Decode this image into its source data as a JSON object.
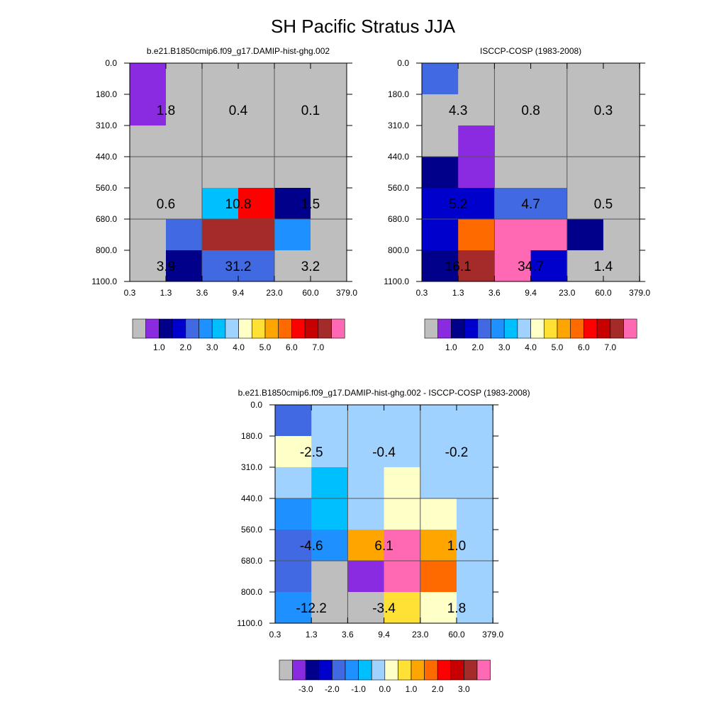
{
  "title": "SH Pacific Stratus JJA",
  "chart_data": [
    {
      "type": "heatmap",
      "title": "b.e21.B1850cmip6.f09_g17.DAMIP-hist-ghg.002",
      "x_ticks": [
        "0.3",
        "1.3",
        "3.6",
        "9.4",
        "23.0",
        "60.0",
        "379.0"
      ],
      "y_ticks": [
        "0.0",
        "180.0",
        "310.0",
        "440.0",
        "560.0",
        "680.0",
        "800.0",
        "1100.0"
      ],
      "x_bin_edges": [
        0.3,
        1.3,
        3.6,
        9.4,
        23.0,
        60.0,
        379.0
      ],
      "y_bin_edges": [
        0,
        180,
        310,
        440,
        560,
        680,
        800,
        1100
      ],
      "y_axis": "pressure (top = 0)",
      "cells_color_index": [
        [
          1,
          0,
          0,
          0,
          0,
          0
        ],
        [
          1,
          0,
          0,
          0,
          0,
          0
        ],
        [
          0,
          0,
          0,
          0,
          0,
          0
        ],
        [
          0,
          0,
          0,
          0,
          0,
          0
        ],
        [
          0,
          0,
          6,
          12,
          2,
          0
        ],
        [
          0,
          4,
          14,
          14,
          5,
          0
        ],
        [
          0,
          2,
          4,
          4,
          0,
          0
        ]
      ],
      "labels": [
        {
          "text": "1.8",
          "col": 0.5,
          "row": 1
        },
        {
          "text": "0.4",
          "col": 2.5,
          "row": 1
        },
        {
          "text": "0.1",
          "col": 4.5,
          "row": 1
        },
        {
          "text": "0.6",
          "col": 0.5,
          "row": 4
        },
        {
          "text": "10.8",
          "col": 2.5,
          "row": 4
        },
        {
          "text": "1.5",
          "col": 4.5,
          "row": 4
        },
        {
          "text": "3.9",
          "col": 0.5,
          "row": 6
        },
        {
          "text": "31.2",
          "col": 2.5,
          "row": 6
        },
        {
          "text": "3.2",
          "col": 4.5,
          "row": 6
        }
      ],
      "colorbar": {
        "colors": [
          "#bebebe",
          "#8a2be2",
          "#00008b",
          "#0000cd",
          "#4169e1",
          "#1e90ff",
          "#00bfff",
          "#a0d2ff",
          "#ffffc8",
          "#ffe135",
          "#ffa500",
          "#ff6a00",
          "#ff0000",
          "#c80000",
          "#a52a2a",
          "#ff69b4"
        ],
        "labels": [
          "1.0",
          "2.0",
          "3.0",
          "4.0",
          "5.0",
          "6.0",
          "7.0"
        ],
        "label_start_boundary": 2,
        "label_step": 2
      }
    },
    {
      "type": "heatmap",
      "title": "ISCCP-COSP (1983-2008)",
      "x_ticks": [
        "0.3",
        "1.3",
        "3.6",
        "9.4",
        "23.0",
        "60.0",
        "379.0"
      ],
      "y_ticks": [
        "0.0",
        "180.0",
        "310.0",
        "440.0",
        "560.0",
        "680.0",
        "800.0",
        "1100.0"
      ],
      "x_bin_edges": [
        0.3,
        1.3,
        3.6,
        9.4,
        23.0,
        60.0,
        379.0
      ],
      "y_bin_edges": [
        0,
        180,
        310,
        440,
        560,
        680,
        800,
        1100
      ],
      "y_axis": "pressure (top = 0)",
      "cells_color_index": [
        [
          4,
          0,
          0,
          0,
          0,
          0
        ],
        [
          0,
          0,
          0,
          0,
          0,
          0
        ],
        [
          0,
          1,
          0,
          0,
          0,
          0
        ],
        [
          2,
          1,
          0,
          0,
          0,
          0
        ],
        [
          3,
          3,
          4,
          4,
          0,
          0
        ],
        [
          3,
          11,
          15,
          15,
          2,
          0
        ],
        [
          2,
          14,
          15,
          3,
          0,
          0
        ]
      ],
      "labels": [
        {
          "text": "4.3",
          "col": 0.5,
          "row": 1
        },
        {
          "text": "0.8",
          "col": 2.5,
          "row": 1
        },
        {
          "text": "0.3",
          "col": 4.5,
          "row": 1
        },
        {
          "text": "5.2",
          "col": 0.5,
          "row": 4
        },
        {
          "text": "4.7",
          "col": 2.5,
          "row": 4
        },
        {
          "text": "0.5",
          "col": 4.5,
          "row": 4
        },
        {
          "text": "16.1",
          "col": 0.5,
          "row": 6
        },
        {
          "text": "34.7",
          "col": 2.5,
          "row": 6
        },
        {
          "text": "1.4",
          "col": 4.5,
          "row": 6
        }
      ],
      "colorbar": {
        "colors": [
          "#bebebe",
          "#8a2be2",
          "#00008b",
          "#0000cd",
          "#4169e1",
          "#1e90ff",
          "#00bfff",
          "#a0d2ff",
          "#ffffc8",
          "#ffe135",
          "#ffa500",
          "#ff6a00",
          "#ff0000",
          "#c80000",
          "#a52a2a",
          "#ff69b4"
        ],
        "labels": [
          "1.0",
          "2.0",
          "3.0",
          "4.0",
          "5.0",
          "6.0",
          "7.0"
        ],
        "label_start_boundary": 2,
        "label_step": 2
      }
    },
    {
      "type": "heatmap",
      "title": "b.e21.B1850cmip6.f09_g17.DAMIP-hist-ghg.002 - ISCCP-COSP (1983-2008)",
      "x_ticks": [
        "0.3",
        "1.3",
        "3.6",
        "9.4",
        "23.0",
        "60.0",
        "379.0"
      ],
      "y_ticks": [
        "0.0",
        "180.0",
        "310.0",
        "440.0",
        "560.0",
        "680.0",
        "800.0",
        "1100.0"
      ],
      "x_bin_edges": [
        0.3,
        1.3,
        3.6,
        9.4,
        23.0,
        60.0,
        379.0
      ],
      "y_bin_edges": [
        0,
        180,
        310,
        440,
        560,
        680,
        800,
        1100
      ],
      "y_axis": "pressure (top = 0)",
      "cells_color_index": [
        [
          4,
          7,
          7,
          7,
          7,
          7
        ],
        [
          8,
          7,
          7,
          7,
          7,
          7
        ],
        [
          7,
          6,
          7,
          8,
          7,
          7
        ],
        [
          5,
          6,
          7,
          8,
          8,
          7
        ],
        [
          4,
          5,
          10,
          15,
          10,
          7
        ],
        [
          4,
          0,
          1,
          15,
          11,
          7
        ],
        [
          5,
          0,
          0,
          9,
          8,
          7
        ]
      ],
      "labels": [
        {
          "text": "-2.5",
          "col": 0.5,
          "row": 1
        },
        {
          "text": "-0.4",
          "col": 2.5,
          "row": 1
        },
        {
          "text": "-0.2",
          "col": 4.5,
          "row": 1
        },
        {
          "text": "-4.6",
          "col": 0.5,
          "row": 4
        },
        {
          "text": "6.1",
          "col": 2.5,
          "row": 4
        },
        {
          "text": "1.0",
          "col": 4.5,
          "row": 4
        },
        {
          "text": "-12.2",
          "col": 0.5,
          "row": 6
        },
        {
          "text": "-3.4",
          "col": 2.5,
          "row": 6
        },
        {
          "text": "1.8",
          "col": 4.5,
          "row": 6
        }
      ],
      "colorbar": {
        "colors": [
          "#bebebe",
          "#8a2be2",
          "#00008b",
          "#0000cd",
          "#4169e1",
          "#1e90ff",
          "#00bfff",
          "#a0d2ff",
          "#ffffc8",
          "#ffe135",
          "#ffa500",
          "#ff6a00",
          "#ff0000",
          "#c80000",
          "#a52a2a",
          "#ff69b4"
        ],
        "labels": [
          "-3.0",
          "-2.0",
          "-1.0",
          "0.0",
          "1.0",
          "2.0",
          "3.0"
        ],
        "label_start_boundary": 2,
        "label_step": 2
      }
    }
  ]
}
